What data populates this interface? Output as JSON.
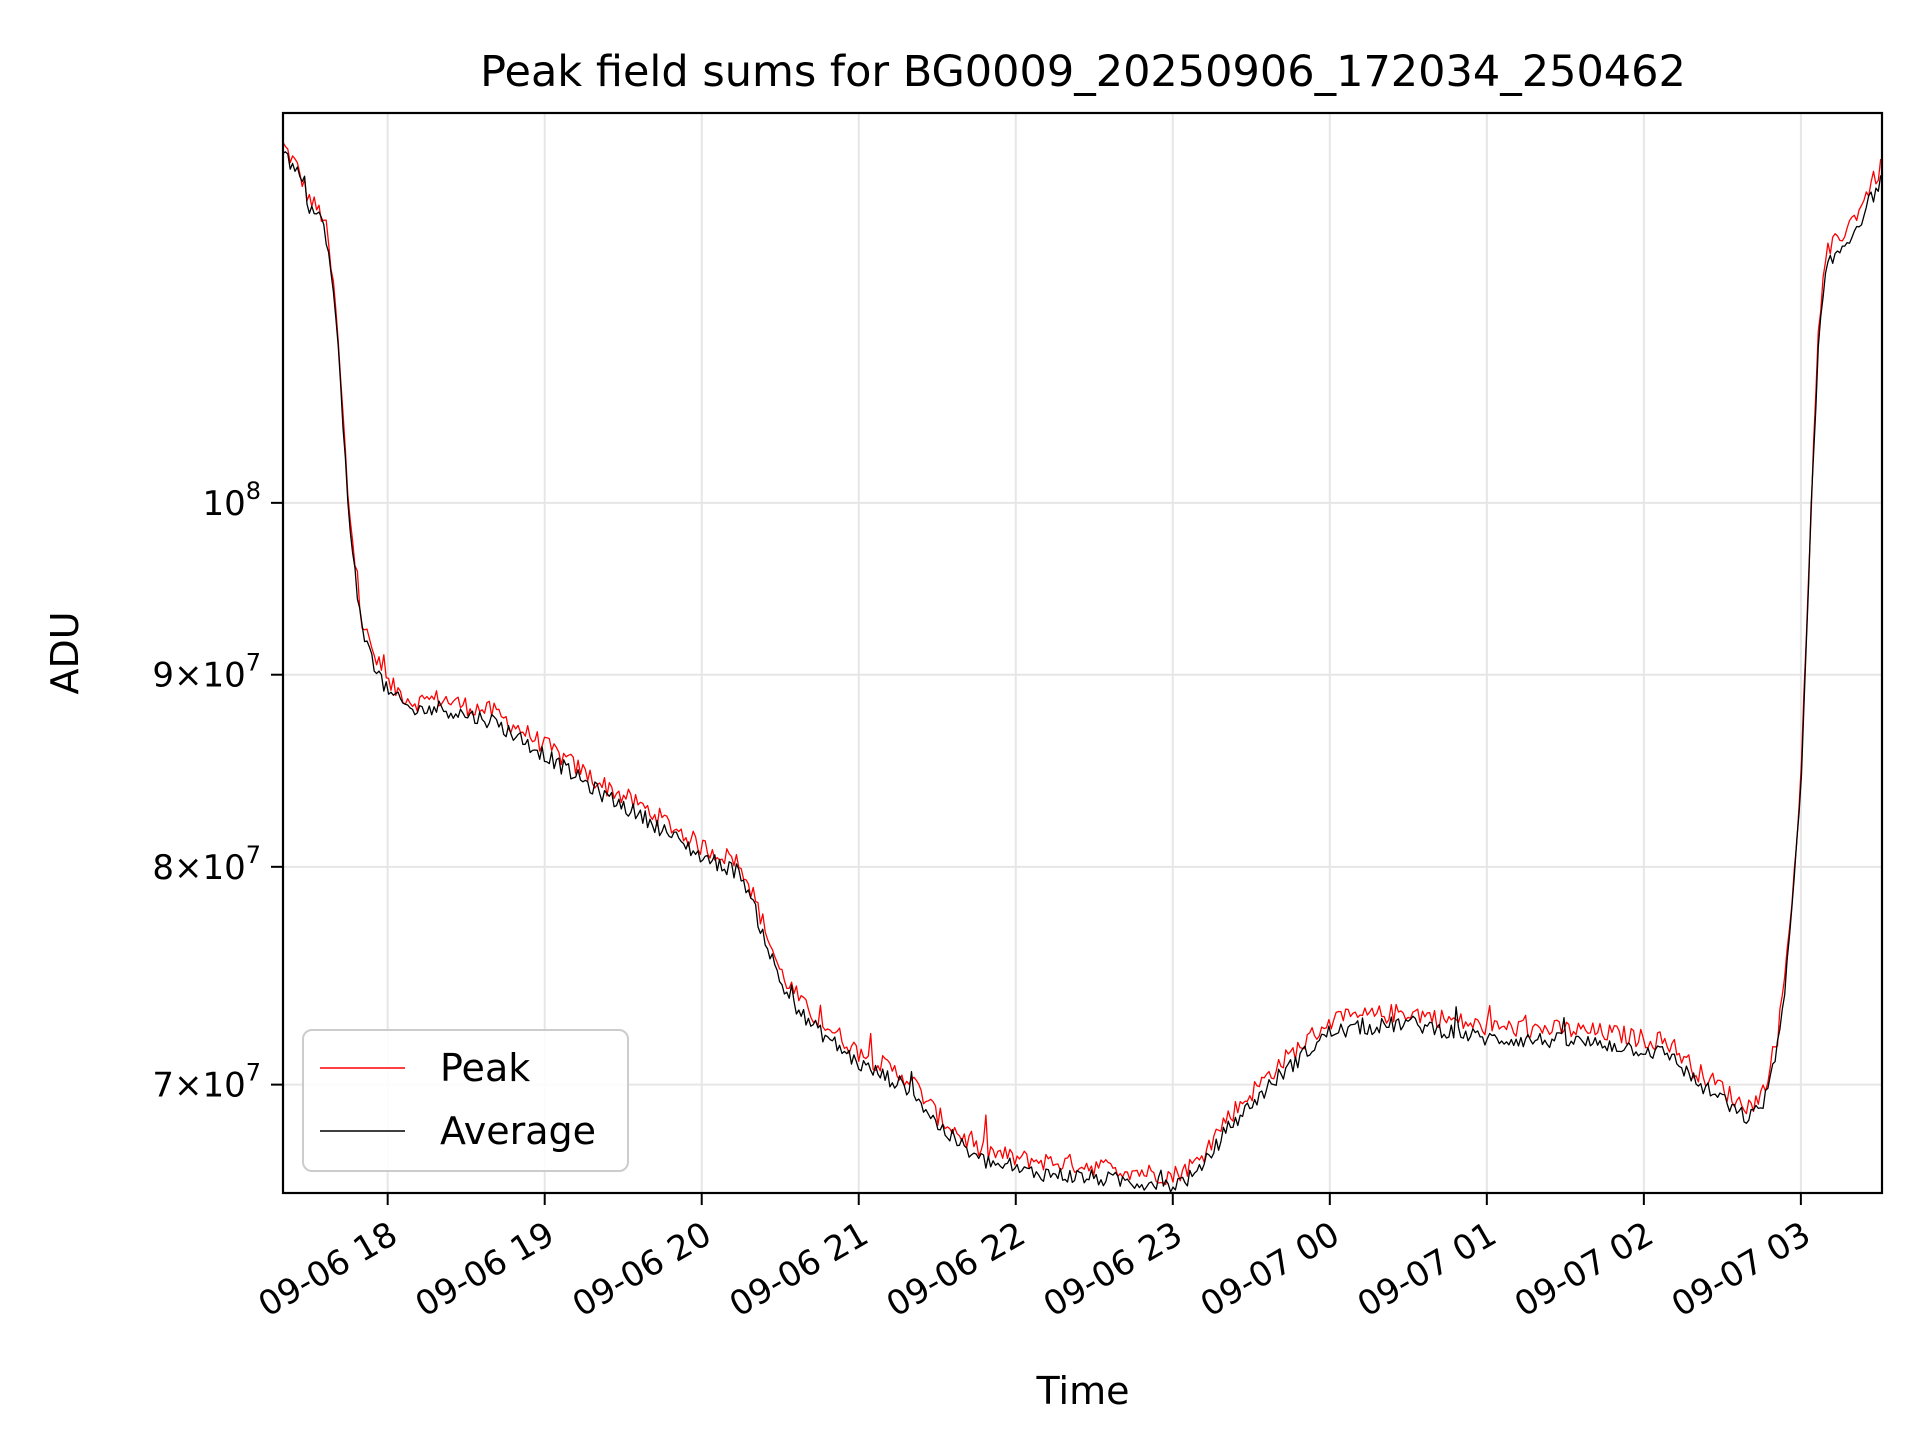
{
  "chart_data": {
    "type": "line",
    "title": "Peak field sums for BG0009_20250906_172034_250462",
    "xlabel": "Time",
    "ylabel": "ADU",
    "y_scale": "log",
    "ylim": [
      65500000,
      127000000
    ],
    "xlim": [
      "2025-09-06 17:20",
      "2025-09-07 03:31"
    ],
    "grid": true,
    "legend_position": "lower-left",
    "x_ticks": [
      {
        "label": "09-06 18",
        "t": "2025-09-06 18:00"
      },
      {
        "label": "09-06 19",
        "t": "2025-09-06 19:00"
      },
      {
        "label": "09-06 20",
        "t": "2025-09-06 20:00"
      },
      {
        "label": "09-06 21",
        "t": "2025-09-06 21:00"
      },
      {
        "label": "09-06 22",
        "t": "2025-09-06 22:00"
      },
      {
        "label": "09-06 23",
        "t": "2025-09-06 23:00"
      },
      {
        "label": "09-07 00",
        "t": "2025-09-07 00:00"
      },
      {
        "label": "09-07 01",
        "t": "2025-09-07 01:00"
      },
      {
        "label": "09-07 02",
        "t": "2025-09-07 02:00"
      },
      {
        "label": "09-07 03",
        "t": "2025-09-07 03:00"
      }
    ],
    "y_ticks": [
      {
        "value": 70000000,
        "mant": "7",
        "exp": "7"
      },
      {
        "value": 80000000,
        "mant": "8",
        "exp": "7"
      },
      {
        "value": 90000000,
        "mant": "9",
        "exp": "7"
      },
      {
        "value": 100000000,
        "mant": "",
        "exp": "8"
      }
    ],
    "series": [
      {
        "name": "Peak",
        "color": "#ff0000",
        "noise": 0.006,
        "offset": 0.008,
        "t": [
          "2025-09-06 17:20",
          "2025-09-06 17:25",
          "2025-09-06 17:30",
          "2025-09-06 17:36",
          "2025-09-06 17:40",
          "2025-09-06 17:45",
          "2025-09-06 17:50",
          "2025-09-06 17:55",
          "2025-09-06 18:00",
          "2025-09-06 18:10",
          "2025-09-06 18:20",
          "2025-09-06 18:30",
          "2025-09-06 18:40",
          "2025-09-06 19:00",
          "2025-09-06 19:20",
          "2025-09-06 19:40",
          "2025-09-06 20:00",
          "2025-09-06 20:15",
          "2025-09-06 20:20",
          "2025-09-06 20:30",
          "2025-09-06 20:40",
          "2025-09-06 21:00",
          "2025-09-06 21:20",
          "2025-09-06 21:30",
          "2025-09-06 21:45",
          "2025-09-06 22:00",
          "2025-09-06 22:30",
          "2025-09-06 23:00",
          "2025-09-06 23:10",
          "2025-09-06 23:20",
          "2025-09-06 23:40",
          "2025-09-07 00:00",
          "2025-09-07 00:30",
          "2025-09-07 01:00",
          "2025-09-07 01:30",
          "2025-09-07 01:50",
          "2025-09-07 02:10",
          "2025-09-07 02:20",
          "2025-09-07 02:25",
          "2025-09-07 02:30",
          "2025-09-07 02:35",
          "2025-09-07 02:40",
          "2025-09-07 02:45",
          "2025-09-07 02:51",
          "2025-09-07 02:55",
          "2025-09-07 03:00",
          "2025-09-07 03:07",
          "2025-09-07 03:10",
          "2025-09-07 03:20",
          "2025-09-07 03:31"
        ],
        "values": [
          124500000,
          123000000,
          120500000,
          119000000,
          113000000,
          100000000,
          93000000,
          91000000,
          89500000,
          88500000,
          88700000,
          88300000,
          88000000,
          86200000,
          84300000,
          82800000,
          81000000,
          80200000,
          78500000,
          75000000,
          73300000,
          71400000,
          70200000,
          68700000,
          67300000,
          66900000,
          66600000,
          66200000,
          66800000,
          68500000,
          70800000,
          72800000,
          73200000,
          72500000,
          72400000,
          72200000,
          71800000,
          70600000,
          70200000,
          69900000,
          69300000,
          69100000,
          69500000,
          72000000,
          76000000,
          84000000,
          112000000,
          116500000,
          119000000,
          123000000
        ]
      },
      {
        "name": "Average",
        "color": "#000000",
        "noise": 0.005,
        "offset": 0,
        "t": [
          "2025-09-06 17:20",
          "2025-09-06 17:25",
          "2025-09-06 17:30",
          "2025-09-06 17:36",
          "2025-09-06 17:40",
          "2025-09-06 17:45",
          "2025-09-06 17:50",
          "2025-09-06 17:55",
          "2025-09-06 18:00",
          "2025-09-06 18:10",
          "2025-09-06 18:20",
          "2025-09-06 18:30",
          "2025-09-06 18:40",
          "2025-09-06 19:00",
          "2025-09-06 19:20",
          "2025-09-06 19:40",
          "2025-09-06 20:00",
          "2025-09-06 20:15",
          "2025-09-06 20:20",
          "2025-09-06 20:30",
          "2025-09-06 20:40",
          "2025-09-06 21:00",
          "2025-09-06 21:20",
          "2025-09-06 21:30",
          "2025-09-06 21:45",
          "2025-09-06 22:00",
          "2025-09-06 22:30",
          "2025-09-06 23:00",
          "2025-09-06 23:10",
          "2025-09-06 23:20",
          "2025-09-06 23:40",
          "2025-09-07 00:00",
          "2025-09-07 00:30",
          "2025-09-07 01:00",
          "2025-09-07 01:30",
          "2025-09-07 01:50",
          "2025-09-07 02:10",
          "2025-09-07 02:20",
          "2025-09-07 02:25",
          "2025-09-07 02:30",
          "2025-09-07 02:35",
          "2025-09-07 02:40",
          "2025-09-07 02:45",
          "2025-09-07 02:51",
          "2025-09-07 02:55",
          "2025-09-07 03:00",
          "2025-09-07 03:07",
          "2025-09-07 03:10",
          "2025-09-07 03:20",
          "2025-09-07 03:31"
        ],
        "values": [
          124000000,
          122500000,
          120000000,
          118500000,
          112500000,
          99500000,
          92500000,
          90500000,
          89000000,
          88000000,
          88200000,
          87800000,
          87500000,
          85700000,
          83800000,
          82300000,
          80500000,
          79700000,
          78000000,
          74500000,
          72800000,
          70900000,
          69800000,
          68300000,
          66900000,
          66400000,
          66100000,
          65800000,
          66300000,
          68000000,
          70300000,
          72300000,
          72700000,
          72000000,
          71900000,
          71700000,
          71300000,
          70100000,
          69700000,
          69400000,
          68800000,
          68600000,
          69000000,
          71500000,
          75500000,
          83500000,
          111000000,
          115500000,
          118000000,
          122000000
        ]
      }
    ]
  }
}
